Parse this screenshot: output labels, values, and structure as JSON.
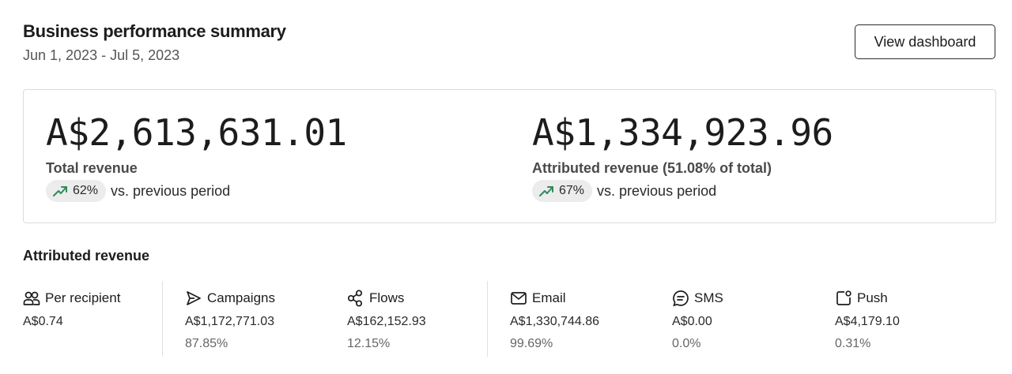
{
  "header": {
    "title": "Business performance summary",
    "date_range": "Jun 1, 2023 - Jul 5, 2023",
    "view_button": "View dashboard"
  },
  "summary": {
    "total": {
      "value": "A$2,613,631.01",
      "label": "Total revenue",
      "change": "62%",
      "change_text": "vs. previous period",
      "trend_icon": "trending-up-icon"
    },
    "attributed": {
      "value": "A$1,334,923.96",
      "label": "Attributed revenue (51.08% of total)",
      "change": "67%",
      "change_text": "vs. previous period",
      "trend_icon": "trending-up-icon"
    },
    "trend_color": "#2e8b57"
  },
  "attributed_section": {
    "title": "Attributed revenue",
    "stats": [
      {
        "label": "Per recipient",
        "icon": "users-icon",
        "value": "A$0.74",
        "percent": ""
      },
      {
        "label": "Campaigns",
        "icon": "send-icon",
        "value": "A$1,172,771.03",
        "percent": "87.85%"
      },
      {
        "label": "Flows",
        "icon": "flows-icon",
        "value": "A$162,152.93",
        "percent": "12.15%"
      },
      {
        "label": "Email",
        "icon": "mail-icon",
        "value": "A$1,330,744.86",
        "percent": "99.69%"
      },
      {
        "label": "SMS",
        "icon": "sms-icon",
        "value": "A$0.00",
        "percent": "0.0%"
      },
      {
        "label": "Push",
        "icon": "push-icon",
        "value": "A$4,179.10",
        "percent": "0.31%"
      }
    ]
  }
}
